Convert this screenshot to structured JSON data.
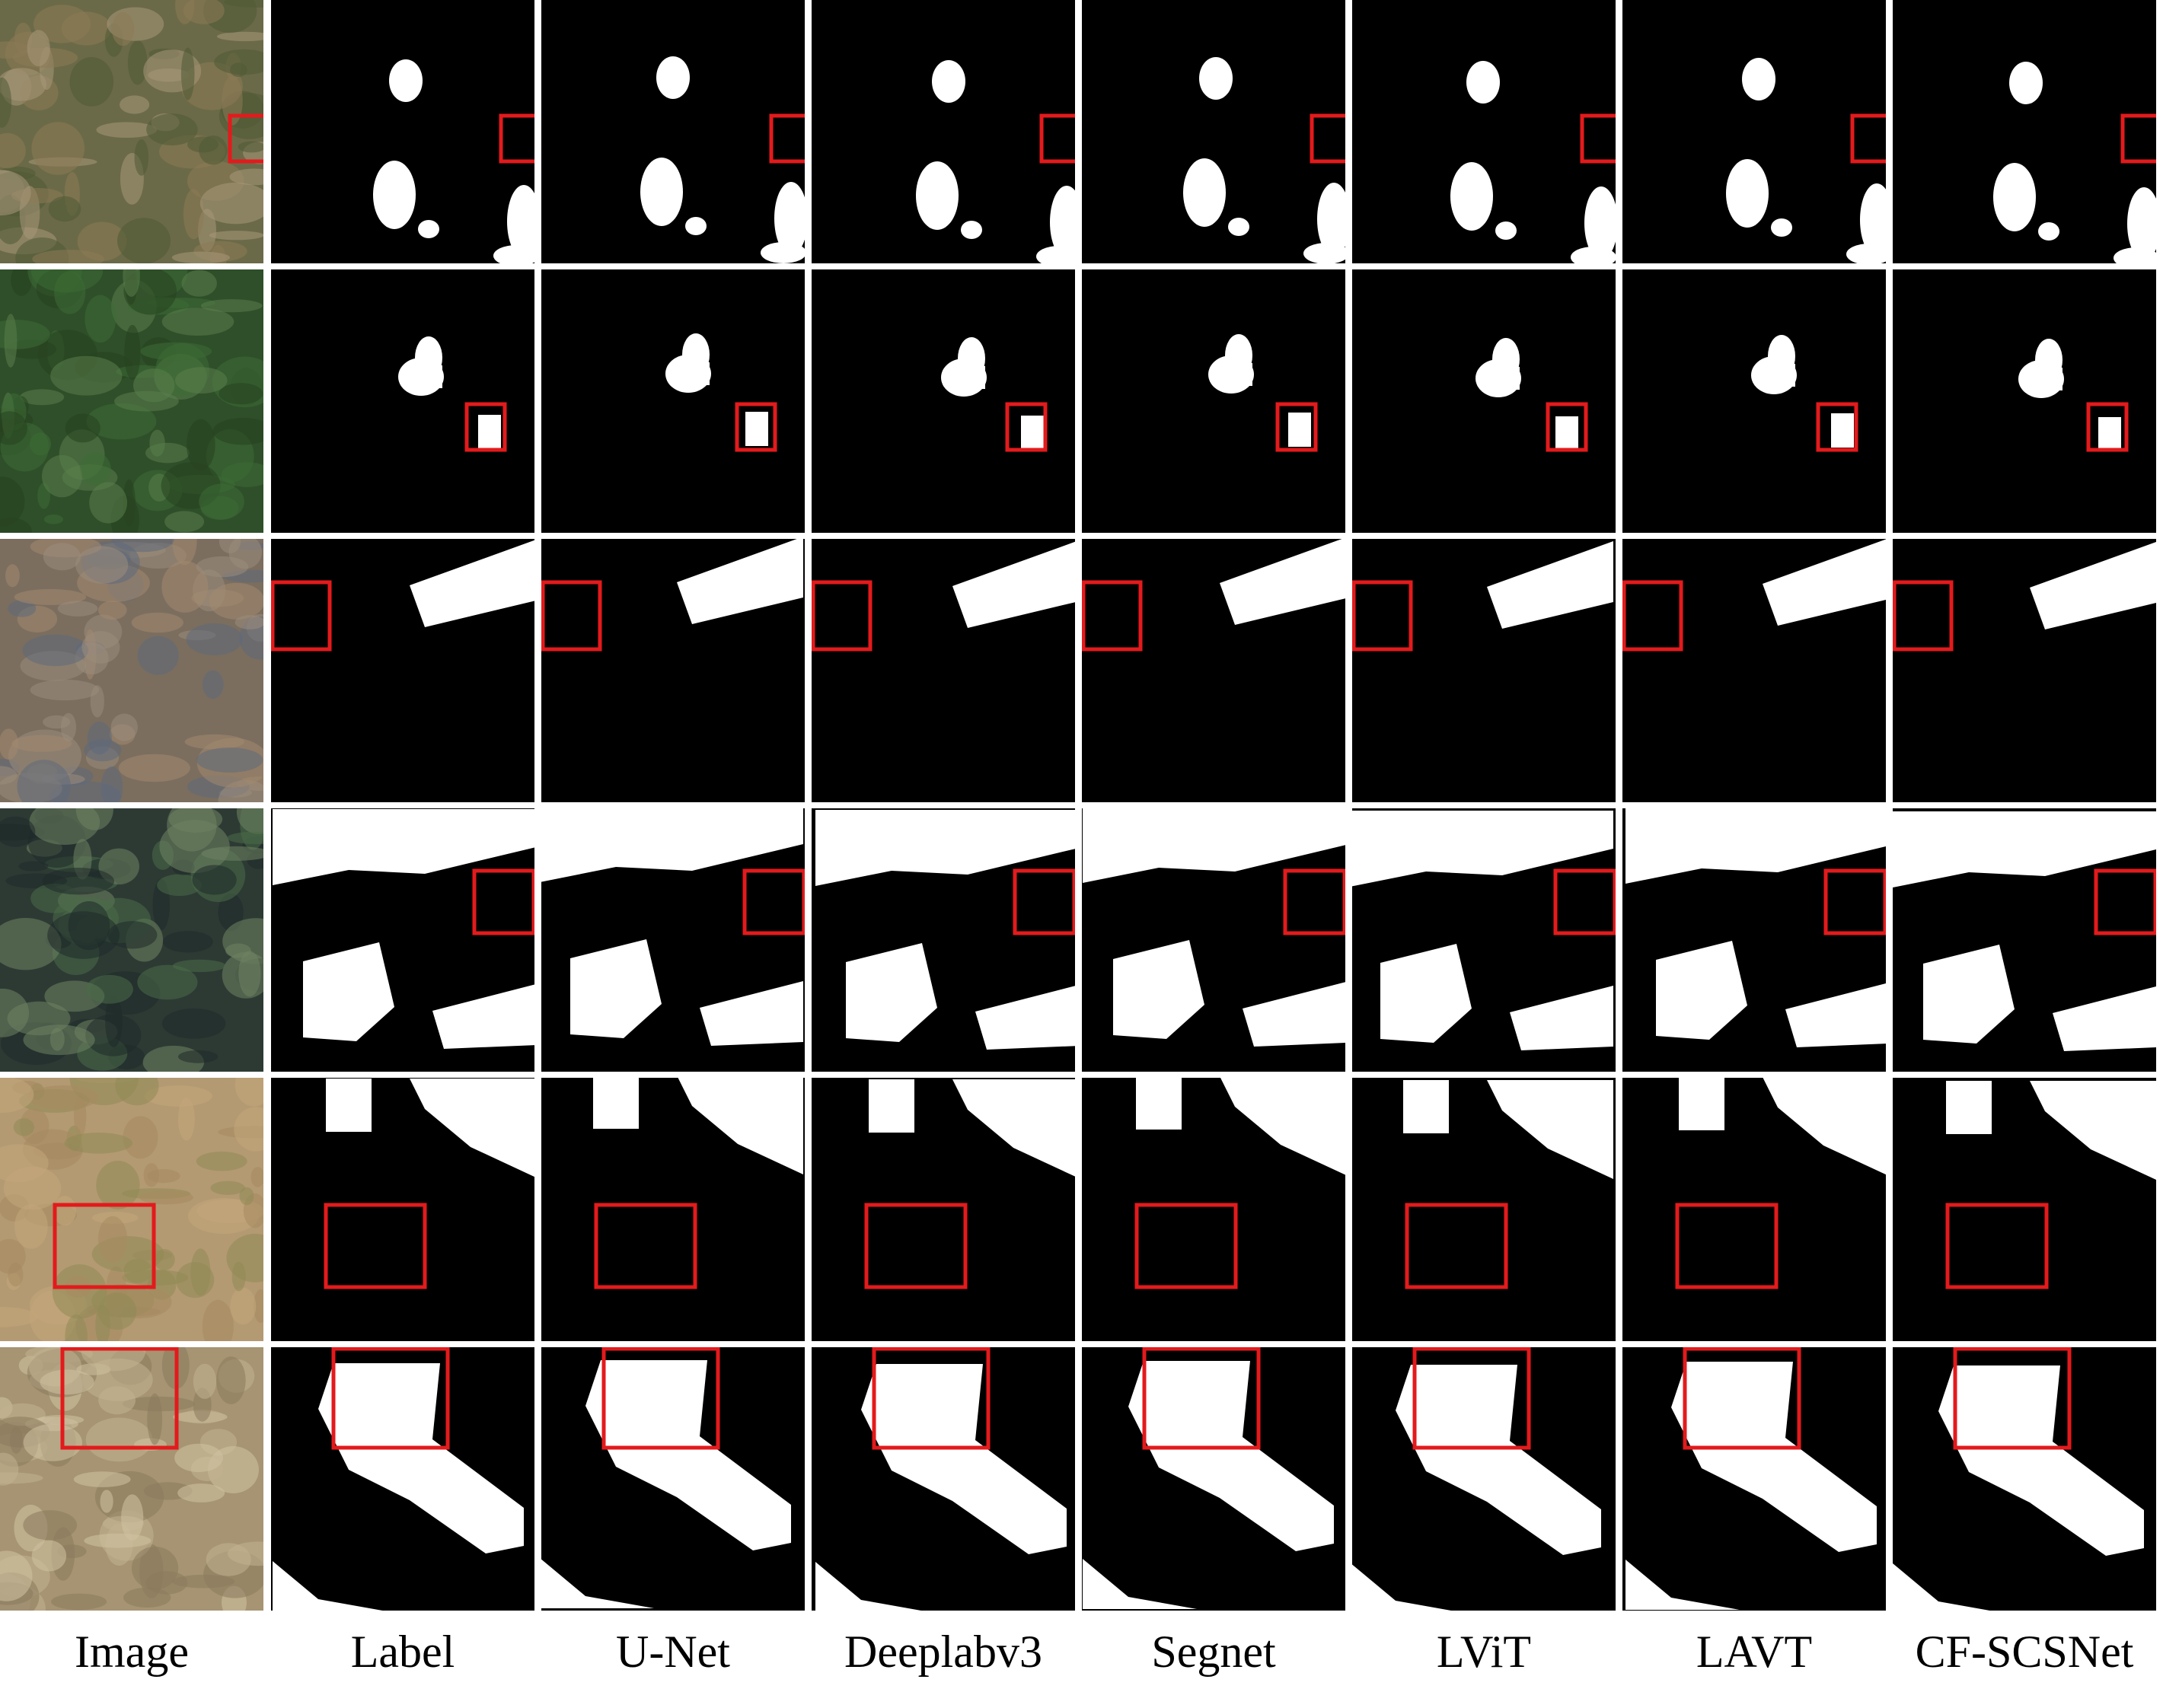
{
  "columns": [
    {
      "label": "Image"
    },
    {
      "label": "Label"
    },
    {
      "label": "U-Net"
    },
    {
      "label": "Deeplabv3"
    },
    {
      "label": "Segnet"
    },
    {
      "label": "LViT"
    },
    {
      "label": "LAVT"
    },
    {
      "label": "CF-SCSNet"
    }
  ],
  "rows": 6,
  "colors": {
    "background": "#000000",
    "foreground": "#ffffff",
    "highlight_box": "#e31a1c"
  }
}
